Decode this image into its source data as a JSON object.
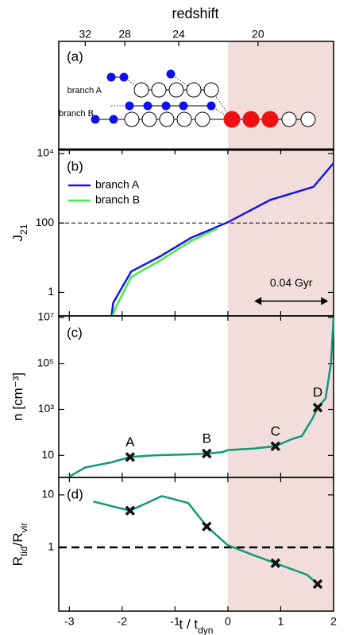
{
  "top_axis": {
    "label": "redshift",
    "ticks": [
      32,
      28,
      24,
      20
    ],
    "tick_t": [
      -2.7,
      -1.95,
      -0.93,
      0.57
    ]
  },
  "shade": {
    "xlim": [
      0,
      2
    ],
    "color": "#f2dddd"
  },
  "tree": {
    "panel_label": "(a)",
    "branches": [
      "branch A",
      "branch B"
    ]
  },
  "chart_data": [
    {
      "type": "line",
      "panel_label": "(b)",
      "ylabel": [
        {
          "text": "J"
        },
        {
          "text": "21",
          "sub": true
        }
      ],
      "log_y": true,
      "xlim": [
        -3.2,
        2
      ],
      "xticks": [
        -3,
        -2,
        -1,
        0,
        1,
        2
      ],
      "ylim": [
        0.21,
        13000
      ],
      "yticks": [
        1,
        100,
        {
          "value": 10000,
          "label": "10⁴"
        }
      ],
      "hline": {
        "value": 100,
        "style": "dashed"
      },
      "legend": "upper left",
      "series": [
        {
          "name": "branch A",
          "color": "#1515e0",
          "x": [
            -2.2,
            -2.17,
            -1.83,
            -1.3,
            -0.7,
            0,
            0.8,
            1.62,
            2
          ],
          "values": [
            0.21,
            0.5,
            4,
            10.5,
            37,
            105,
            460,
            1100,
            5300
          ]
        },
        {
          "name": "branch B",
          "color": "#44ee44",
          "x": [
            -2.18,
            -2.14,
            -1.83,
            -1.3,
            -0.7,
            -0.2
          ],
          "values": [
            0.21,
            0.32,
            2.8,
            8,
            30,
            70
          ]
        }
      ],
      "annotation": {
        "text": "0.04 Gyr",
        "x": [
          0.5,
          1.9
        ],
        "y": 0.56
      }
    },
    {
      "type": "line",
      "panel_label": "(c)",
      "ylabel": [
        {
          "text": "n [cm⁻³]"
        }
      ],
      "log_y": true,
      "xlim": [
        -3.2,
        2
      ],
      "xticks": [
        -3,
        -2,
        -1,
        0,
        1,
        2
      ],
      "ylim": [
        1.1,
        11700000
      ],
      "yticks": [
        10,
        {
          "value": 1000,
          "label": "10³"
        },
        {
          "value": 100000,
          "label": "10⁵"
        },
        {
          "value": 10000000,
          "label": "10⁷"
        }
      ],
      "series": [
        {
          "color": "#119977",
          "x": [
            -3,
            -2.7,
            -2.2,
            -1.85,
            -1.4,
            -0.8,
            -0.4,
            -0.1,
            0,
            0.5,
            0.9,
            1.2,
            1.4,
            1.6,
            1.7,
            1.85,
            1.95,
            2
          ],
          "values": [
            1.2,
            3,
            5,
            8.5,
            10,
            11,
            12,
            14,
            17,
            20,
            25,
            50,
            70,
            400,
            1200,
            3000,
            100000,
            10000000
          ]
        }
      ],
      "markers": {
        "labels": [
          "A",
          "B",
          "C",
          "D"
        ],
        "x": [
          -1.85,
          -0.4,
          0.9,
          1.7
        ],
        "values": [
          8.5,
          12,
          25,
          1200
        ]
      }
    },
    {
      "type": "line",
      "panel_label": "(d)",
      "ylabel": [
        {
          "text": "R"
        },
        {
          "text": "tid",
          "sub": true
        },
        {
          "text": "/R"
        },
        {
          "text": "vir",
          "sub": true
        }
      ],
      "log_y": true,
      "xlim": [
        -3.2,
        2
      ],
      "xticks": [
        -3,
        -2,
        -1,
        0,
        1,
        2
      ],
      "xlabel": [
        {
          "text": "t / t"
        },
        {
          "text": "dyn",
          "sub": true
        }
      ],
      "ylim": [
        0.061,
        21.5
      ],
      "yticks": [
        1,
        10
      ],
      "hline": {
        "value": 1,
        "style": "dashed-bold"
      },
      "series": [
        {
          "color": "#119977",
          "x": [
            -2.55,
            -1.85,
            -1.25,
            -0.75,
            -0.4,
            0,
            0.5,
            0.9,
            1.5,
            1.7
          ],
          "values": [
            7.5,
            5,
            9.5,
            7,
            2.5,
            1.1,
            0.7,
            0.5,
            0.3,
            0.2
          ]
        }
      ],
      "markers": {
        "x": [
          -1.85,
          -0.4,
          0.9,
          1.7
        ],
        "values": [
          5,
          2.5,
          0.5,
          0.2
        ]
      }
    }
  ]
}
